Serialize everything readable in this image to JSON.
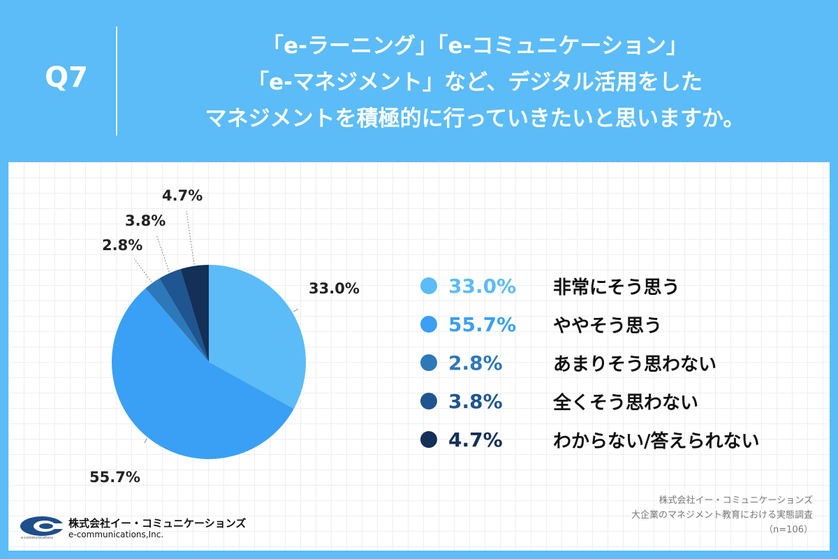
{
  "header": {
    "q_label": "Q7",
    "question_lines": [
      "「e-ラーニング」「e-コミュニケーション」",
      "「e-マネジメント」など、デジタル活用をした",
      "マネジメントを積極的に行っていきたいと思いますか。"
    ]
  },
  "chart_data": {
    "type": "pie",
    "categories": [
      "非常にそう思う",
      "ややそう思う",
      "あまりそう思わない",
      "全くそう思わない",
      "わからない/答えられない"
    ],
    "values": [
      33.0,
      55.7,
      2.8,
      3.8,
      4.7
    ],
    "value_labels": [
      "33.0%",
      "55.7%",
      "2.8%",
      "3.8%",
      "4.7%"
    ],
    "colors": [
      "#5bbcf7",
      "#3aa0f5",
      "#2d78b8",
      "#1f5590",
      "#133057"
    ],
    "start": "12 o'clock, clockwise"
  },
  "legend": {
    "items": [
      {
        "value": "33.0%",
        "label": "非常にそう思う",
        "color": "#5bbcf7"
      },
      {
        "value": "55.7%",
        "label": "ややそう思う",
        "color": "#3aa0f5"
      },
      {
        "value": "2.8%",
        "label": "あまりそう思わない",
        "color": "#2d78b8"
      },
      {
        "value": "3.8%",
        "label": "全くそう思わない",
        "color": "#1f5590"
      },
      {
        "value": "4.7%",
        "label": "わからない/答えられない",
        "color": "#133057"
      }
    ]
  },
  "source": {
    "company": "株式会社イー・コミュニケーションズ",
    "survey": "大企業のマネジメント教育における実態調査",
    "sample": "（n=106）"
  },
  "logo": {
    "name": "株式会社イー・コミュニケーションズ",
    "sub": "e-communications,Inc.",
    "tiny": "e-communications"
  }
}
